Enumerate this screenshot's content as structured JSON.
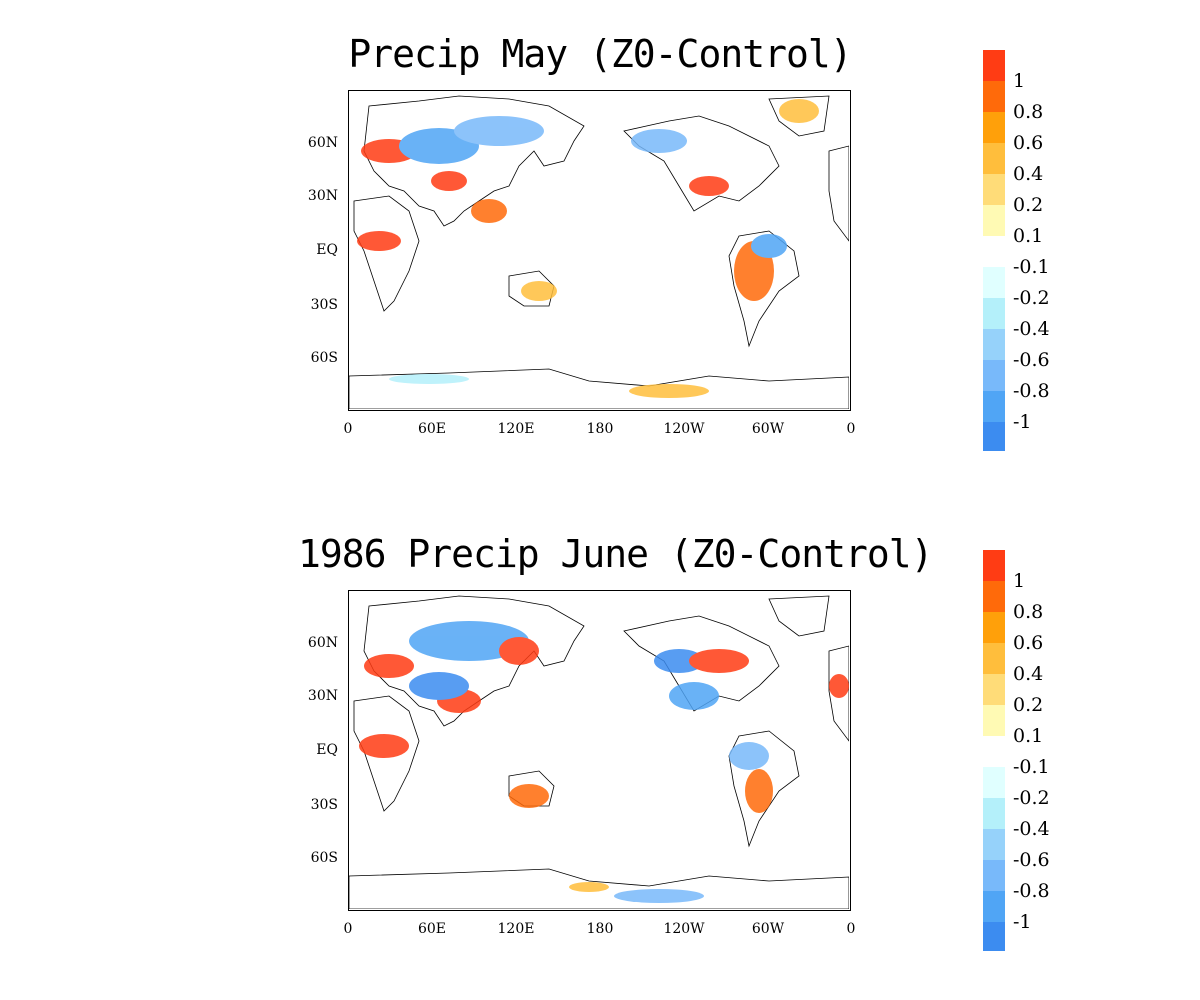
{
  "panels": [
    {
      "title": "Precip May (Z0-Control)"
    },
    {
      "title": "1986 Precip June (Z0-Control)"
    }
  ],
  "axes": {
    "lat_labels": [
      "60N",
      "30N",
      "EQ",
      "30S",
      "60S"
    ],
    "lon_labels": [
      "0",
      "60E",
      "120E",
      "180",
      "120W",
      "60W",
      "0"
    ]
  },
  "colorbar": {
    "labels": [
      "1",
      "0.8",
      "0.6",
      "0.4",
      "0.2",
      "0.1",
      "-0.1",
      "-0.2",
      "-0.4",
      "-0.6",
      "-0.8",
      "-1"
    ],
    "colors": [
      "#ff3c14",
      "#ff6a0a",
      "#ffa00a",
      "#ffbe3c",
      "#ffdc78",
      "#fffab4",
      "#ffffff",
      "#e0ffff",
      "#b4f0fa",
      "#96d2fa",
      "#78b9fa",
      "#50a5f5",
      "#3c8cf0"
    ]
  }
}
